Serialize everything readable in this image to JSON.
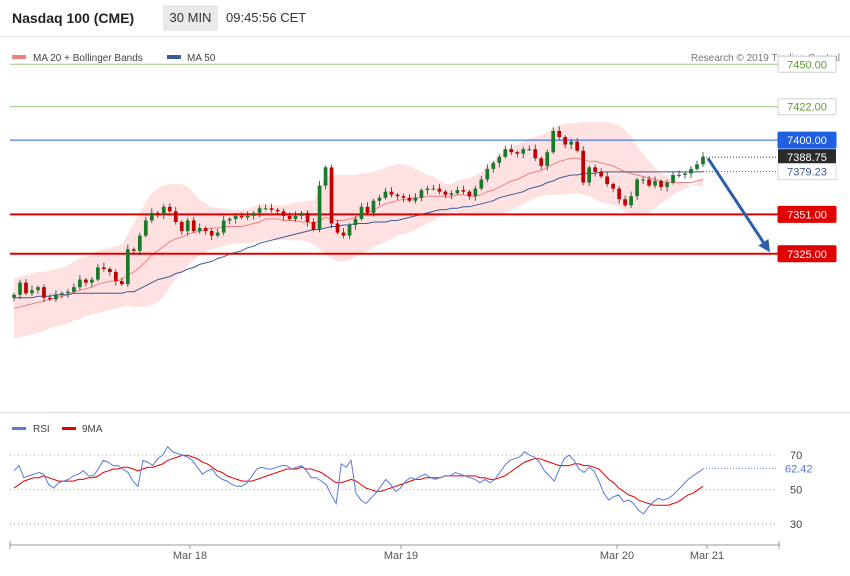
{
  "header": {
    "instrument": "Nasdaq 100 (CME)",
    "timeframe": "30 MIN",
    "time": "09:45:56 CET"
  },
  "legend_main": {
    "ma20": "MA 20 + Bollinger Bands",
    "ma50": "MA 50",
    "credit": "Research © 2019 Trading Central"
  },
  "legend_rsi": {
    "rsi": "RSI",
    "ma9": "9MA"
  },
  "colors": {
    "ma20": "#f08080",
    "ma50": "#3a5a9a",
    "bull": "#1a7a2a",
    "bear": "#c00000",
    "green_level": "#5aa02c",
    "blue_level": "#1f5fe0",
    "red_level": "#e00000",
    "rsi": "#5a78d8",
    "rsi_ma": "#e00000",
    "band": "#ffd9d9",
    "arrow": "#2a5fa8"
  },
  "chart_data": [
    {
      "type": "candlestick",
      "ylim": [
        7222,
        7466
      ],
      "x_labels": [
        "Mar 18",
        "Mar 19",
        "Mar 20",
        "Mar 21"
      ],
      "levels": [
        {
          "value": 7450.0,
          "label": "7450.00",
          "kind": "resistance"
        },
        {
          "value": 7422.0,
          "label": "7422.00",
          "kind": "resistance"
        },
        {
          "value": 7400.0,
          "label": "7400.00",
          "kind": "pivot"
        },
        {
          "value": 7351.0,
          "label": "7351.00",
          "kind": "support"
        },
        {
          "value": 7325.0,
          "label": "7325.00",
          "kind": "support"
        }
      ],
      "last_price": {
        "value": 7388.75,
        "label": "7388.75"
      },
      "ma50_last": {
        "value": 7379.23,
        "label": "7379.23"
      },
      "projection": {
        "from": 7388,
        "to": 7326
      },
      "closes": [
        7298,
        7306,
        7299,
        7301,
        7303,
        7296,
        7295,
        7298,
        7299,
        7300,
        7303,
        7308,
        7306,
        7308,
        7316,
        7315,
        7313,
        7307,
        7305,
        7328,
        7327,
        7337,
        7347,
        7352,
        7351,
        7356,
        7353,
        7346,
        7340,
        7347,
        7340,
        7342,
        7340,
        7337,
        7339,
        7347,
        7348,
        7350,
        7349,
        7350,
        7352,
        7355,
        7355,
        7354,
        7353,
        7350,
        7348,
        7350,
        7352,
        7346,
        7341,
        7370,
        7382,
        7345,
        7339,
        7337,
        7344,
        7348,
        7356,
        7352,
        7360,
        7362,
        7366,
        7364,
        7363,
        7362,
        7360,
        7362,
        7367,
        7368,
        7368,
        7366,
        7364,
        7365,
        7367,
        7366,
        7363,
        7368,
        7374,
        7381,
        7385,
        7389,
        7394,
        7392,
        7391,
        7394,
        7394,
        7388,
        7383,
        7392,
        7406,
        7402,
        7397,
        7399,
        7393,
        7372,
        7382,
        7379,
        7376,
        7371,
        7368,
        7361,
        7357,
        7363,
        7374,
        7374,
        7370,
        7373,
        7369,
        7372,
        7377,
        7377,
        7378,
        7381,
        7384,
        7389
      ],
      "ma20": [
        7289,
        7290,
        7291,
        7292,
        7293,
        7294,
        7295,
        7296,
        7297,
        7298,
        7300,
        7301,
        7302,
        7303,
        7305,
        7306,
        7307,
        7307,
        7308,
        7311,
        7313,
        7316,
        7320,
        7324,
        7327,
        7330,
        7333,
        7335,
        7336,
        7338,
        7339,
        7340,
        7341,
        7342,
        7342,
        7343,
        7343,
        7343,
        7343,
        7344,
        7345,
        7346,
        7348,
        7348,
        7348,
        7347,
        7347,
        7347,
        7346,
        7346,
        7345,
        7347,
        7349,
        7348,
        7347,
        7347,
        7348,
        7349,
        7351,
        7352,
        7354,
        7356,
        7358,
        7359,
        7360,
        7361,
        7361,
        7362,
        7362,
        7363,
        7363,
        7363,
        7363,
        7363,
        7364,
        7364,
        7363,
        7363,
        7364,
        7366,
        7367,
        7369,
        7371,
        7373,
        7374,
        7376,
        7378,
        7379,
        7380,
        7382,
        7384,
        7386,
        7387,
        7388,
        7388,
        7387,
        7386,
        7386,
        7385,
        7384,
        7383,
        7381,
        7379,
        7378,
        7377,
        7376,
        7375,
        7374,
        7373,
        7372,
        7372,
        7372,
        7372,
        7372,
        7373,
        7374
      ],
      "bb_upper": [
        7309,
        7310,
        7311,
        7312,
        7313,
        7313,
        7314,
        7315,
        7316,
        7317,
        7320,
        7322,
        7323,
        7324,
        7327,
        7328,
        7329,
        7330,
        7331,
        7338,
        7345,
        7352,
        7359,
        7365,
        7368,
        7370,
        7371,
        7371,
        7371,
        7369,
        7365,
        7361,
        7358,
        7356,
        7355,
        7355,
        7354,
        7354,
        7354,
        7355,
        7356,
        7358,
        7358,
        7357,
        7357,
        7357,
        7358,
        7359,
        7359,
        7360,
        7360,
        7368,
        7376,
        7377,
        7377,
        7377,
        7377,
        7377,
        7378,
        7378,
        7379,
        7380,
        7382,
        7383,
        7384,
        7384,
        7383,
        7381,
        7379,
        7377,
        7376,
        7373,
        7371,
        7371,
        7373,
        7374,
        7375,
        7377,
        7379,
        7383,
        7386,
        7390,
        7393,
        7396,
        7397,
        7399,
        7401,
        7402,
        7403,
        7405,
        7408,
        7410,
        7411,
        7411,
        7411,
        7412,
        7412,
        7412,
        7412,
        7412,
        7411,
        7410,
        7407,
        7402,
        7396,
        7391,
        7386,
        7382,
        7378,
        7376,
        7374,
        7372,
        7371,
        7370,
        7372,
        7375
      ],
      "bb_lower": [
        7269,
        7270,
        7271,
        7272,
        7273,
        7274,
        7276,
        7277,
        7278,
        7279,
        7281,
        7282,
        7284,
        7285,
        7286,
        7287,
        7288,
        7289,
        7290,
        7291,
        7290,
        7290,
        7290,
        7291,
        7293,
        7297,
        7303,
        7309,
        7313,
        7317,
        7321,
        7324,
        7326,
        7328,
        7329,
        7330,
        7331,
        7332,
        7332,
        7332,
        7333,
        7333,
        7334,
        7334,
        7334,
        7334,
        7334,
        7334,
        7334,
        7333,
        7331,
        7328,
        7325,
        7322,
        7320,
        7320,
        7321,
        7323,
        7325,
        7327,
        7329,
        7331,
        7333,
        7335,
        7337,
        7338,
        7339,
        7341,
        7343,
        7345,
        7347,
        7349,
        7351,
        7352,
        7352,
        7351,
        7350,
        7350,
        7350,
        7351,
        7350,
        7350,
        7352,
        7354,
        7356,
        7358,
        7360,
        7362,
        7363,
        7364,
        7364,
        7364,
        7364,
        7365,
        7365,
        7364,
        7363,
        7361,
        7359,
        7358,
        7357,
        7356,
        7353,
        7350,
        7350,
        7351,
        7352,
        7355,
        7358,
        7361,
        7364,
        7366,
        7368,
        7370,
        7370,
        7369
      ],
      "ma50": [
        7296,
        7296,
        7296,
        7296,
        7297,
        7297,
        7297,
        7298,
        7298,
        7298,
        7299,
        7299,
        7299,
        7299,
        7299,
        7299,
        7299,
        7299,
        7299,
        7300,
        7300,
        7302,
        7304,
        7306,
        7308,
        7309,
        7310,
        7312,
        7313,
        7315,
        7316,
        7318,
        7319,
        7320,
        7322,
        7323,
        7325,
        7326,
        7327,
        7329,
        7330,
        7332,
        7333,
        7334,
        7335,
        7336,
        7337,
        7338,
        7339,
        7340,
        7341,
        7341,
        7342,
        7343,
        7343,
        7344,
        7344,
        7345,
        7345,
        7345,
        7346,
        7346,
        7346,
        7347,
        7347,
        7348,
        7349,
        7350,
        7351,
        7352,
        7353,
        7354,
        7354,
        7355,
        7355,
        7356,
        7356,
        7357,
        7358,
        7359,
        7360,
        7362,
        7363,
        7364,
        7365,
        7366,
        7368,
        7369,
        7370,
        7372,
        7373,
        7375,
        7376,
        7377,
        7377,
        7378,
        7378,
        7378,
        7379,
        7379,
        7379,
        7379,
        7379,
        7379,
        7379,
        7379,
        7379,
        7379,
        7379,
        7379,
        7379,
        7379,
        7379,
        7379,
        7379,
        7379
      ]
    },
    {
      "type": "line",
      "ylim": [
        22,
        80
      ],
      "yticks": [
        70,
        50,
        30
      ],
      "last": {
        "value": 62.42,
        "label": "62.42"
      },
      "series": [
        {
          "name": "RSI",
          "values": [
            61,
            64,
            57,
            58,
            59,
            60,
            59,
            53,
            51,
            54,
            55,
            56,
            58,
            59,
            61,
            58,
            58,
            62,
            67,
            66,
            64,
            64,
            62,
            60,
            55,
            52,
            67,
            66,
            64,
            68,
            70,
            75,
            72,
            71,
            70,
            69,
            67,
            63,
            59,
            61,
            62,
            58,
            56,
            55,
            53,
            52,
            52,
            54,
            58,
            62,
            63,
            62,
            62,
            63,
            64,
            64,
            62,
            63,
            64,
            61,
            57,
            57,
            55,
            53,
            47,
            42,
            65,
            63,
            67,
            48,
            44,
            42,
            45,
            48,
            52,
            56,
            53,
            49,
            51,
            55,
            57,
            56,
            58,
            59,
            57,
            56,
            57,
            58,
            58,
            60,
            59,
            58,
            57,
            56,
            54,
            56,
            54,
            56,
            60,
            64,
            67,
            68,
            69,
            72,
            70,
            69,
            66,
            61,
            58,
            55,
            62,
            68,
            70,
            67,
            62,
            60,
            63,
            61,
            55,
            48,
            44,
            46,
            47,
            43,
            44,
            42,
            38,
            36,
            40,
            43,
            45,
            44,
            45,
            47,
            50,
            53,
            56,
            58,
            60,
            62
          ]
        },
        {
          "name": "9MA",
          "values": [
            51,
            53,
            55,
            56,
            57,
            57,
            58,
            57,
            56,
            55,
            55,
            55,
            55,
            56,
            56,
            57,
            57,
            58,
            60,
            61,
            62,
            62,
            63,
            63,
            62,
            61,
            62,
            63,
            63,
            64,
            65,
            67,
            68,
            69,
            70,
            70,
            69,
            68,
            66,
            65,
            63,
            61,
            60,
            58,
            57,
            56,
            55,
            55,
            55,
            56,
            57,
            58,
            59,
            60,
            61,
            62,
            62,
            62,
            63,
            62,
            62,
            61,
            60,
            58,
            56,
            54,
            54,
            55,
            56,
            55,
            53,
            51,
            50,
            49,
            49,
            50,
            51,
            52,
            53,
            54,
            55,
            56,
            56,
            57,
            57,
            57,
            57,
            58,
            58,
            58,
            58,
            58,
            58,
            58,
            57,
            57,
            56,
            56,
            57,
            58,
            60,
            62,
            64,
            66,
            67,
            68,
            68,
            67,
            66,
            65,
            64,
            64,
            64,
            65,
            65,
            64,
            64,
            63,
            62,
            59,
            56,
            54,
            51,
            49,
            47,
            46,
            44,
            43,
            42,
            41,
            41,
            41,
            41,
            42,
            43,
            45,
            47,
            48,
            50,
            52
          ]
        }
      ]
    }
  ]
}
